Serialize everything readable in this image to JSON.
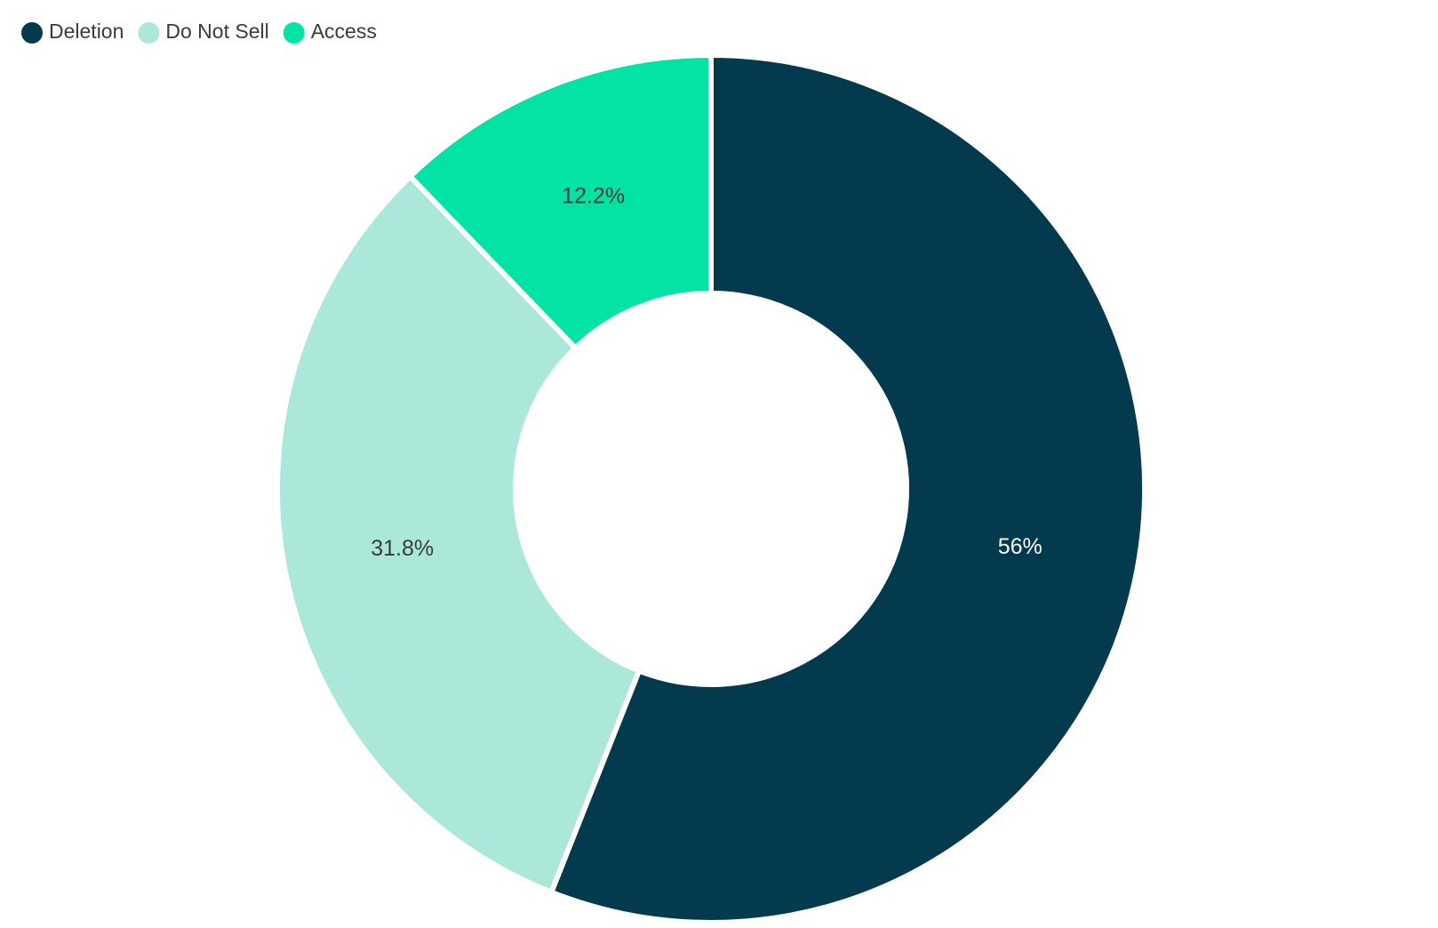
{
  "chart_data": {
    "type": "donut",
    "categories": [
      "Deletion",
      "Do Not Sell",
      "Access"
    ],
    "values": [
      56,
      31.8,
      12.2
    ],
    "value_labels": [
      "56%",
      "31.8%",
      "12.2%"
    ],
    "colors": [
      "#043a4e",
      "#ace8da",
      "#03e3a6"
    ],
    "legend": "top-left"
  }
}
